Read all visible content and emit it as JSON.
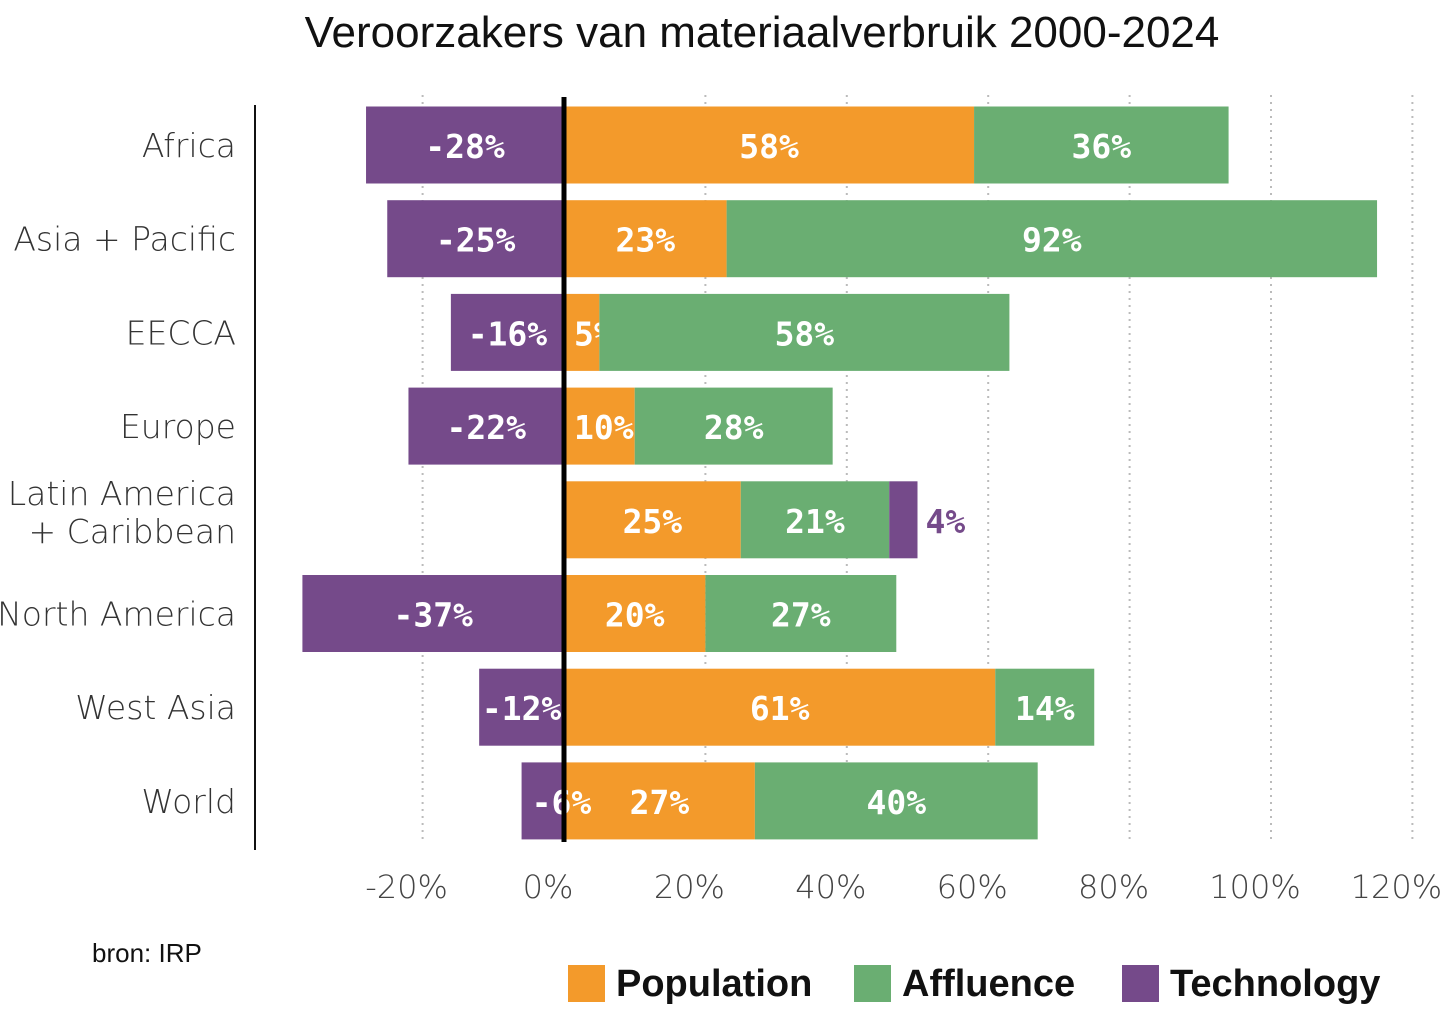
{
  "chart_data": {
    "type": "bar",
    "orientation": "horizontal",
    "stacked": true,
    "title": "Veroorzakers van materiaalverbruik 2000-2024",
    "source": "bron: IRP",
    "categories": [
      "Africa",
      "Asia + Pacific",
      "EECCA",
      "Europe",
      "Latin America + Caribbean",
      "North America",
      "West Asia",
      "World"
    ],
    "category_lines": [
      [
        "Africa"
      ],
      [
        "Asia + Pacific"
      ],
      [
        "EECCA"
      ],
      [
        "Europe"
      ],
      [
        "Latin America",
        "+ Caribbean"
      ],
      [
        "North America"
      ],
      [
        "West Asia"
      ],
      [
        "World"
      ]
    ],
    "series": [
      {
        "name": "Population",
        "color": "#F39A2B",
        "values": [
          58,
          23,
          5,
          10,
          25,
          20,
          61,
          27
        ]
      },
      {
        "name": "Affluence",
        "color": "#6AAE72",
        "values": [
          36,
          92,
          58,
          28,
          21,
          27,
          14,
          40
        ]
      },
      {
        "name": "Technology",
        "color": "#754A8A",
        "values": [
          -28,
          -25,
          -16,
          -22,
          4,
          -37,
          -12,
          -6
        ]
      }
    ],
    "xlim": [
      -37,
      120
    ],
    "xticks": [
      -20,
      0,
      20,
      40,
      60,
      80,
      100,
      120
    ],
    "xtick_labels": [
      "-20%",
      "0%",
      "20%",
      "40%",
      "60%",
      "80%",
      "100%",
      "120%"
    ],
    "grid": "vertical dotted",
    "legend_position": "bottom-right"
  }
}
